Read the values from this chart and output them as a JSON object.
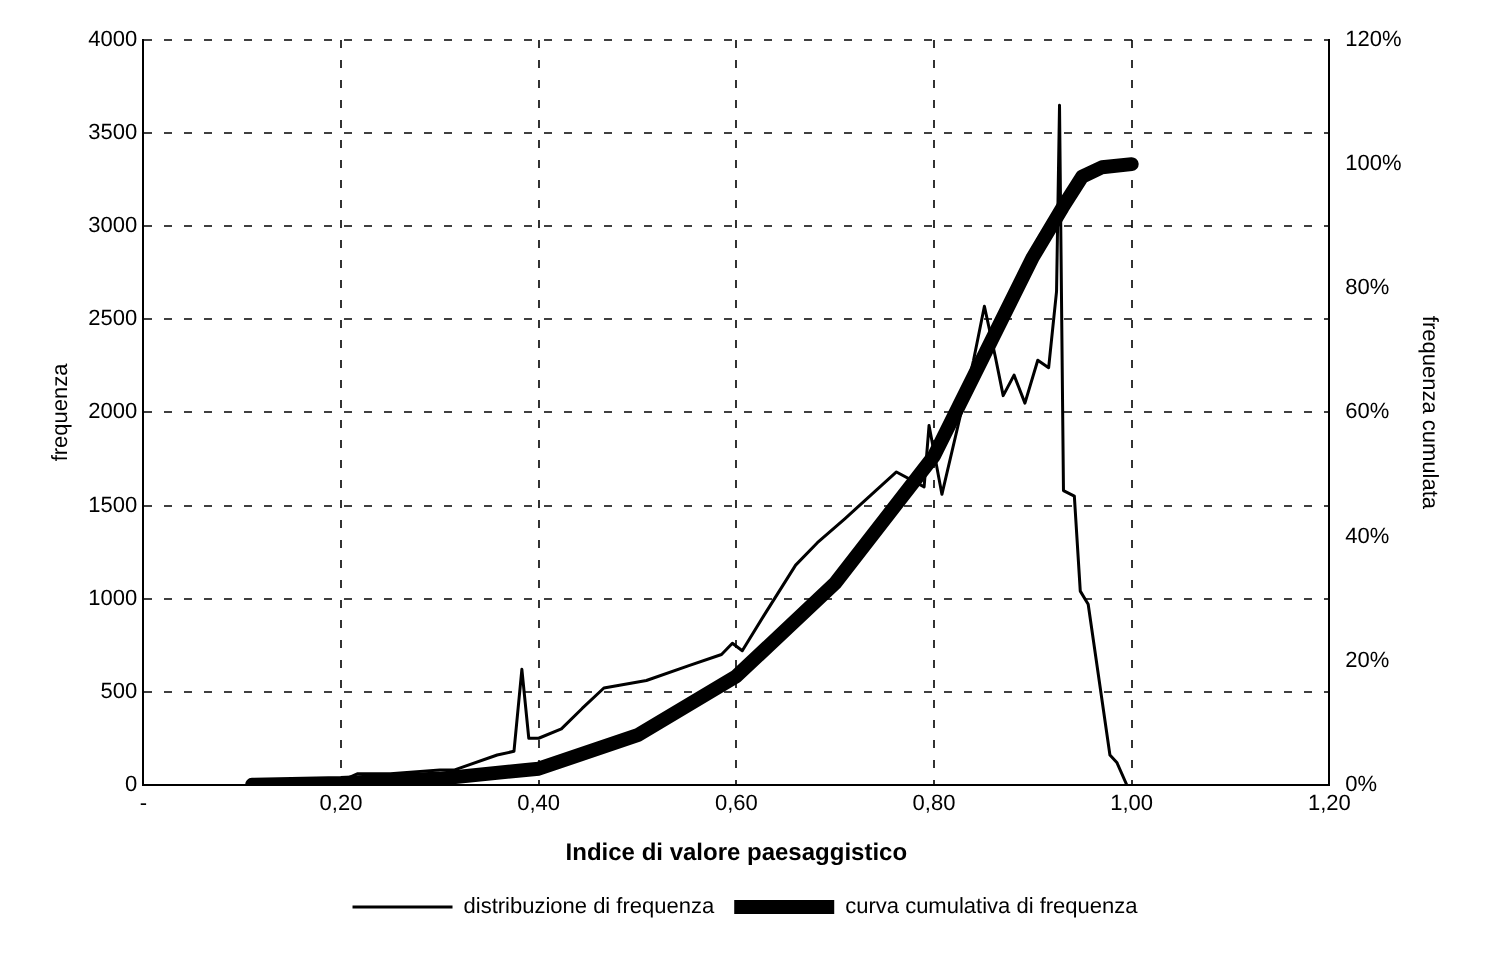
{
  "chart_data": {
    "type": "line",
    "xlabel": "Indice di valore paesaggistico",
    "ylabel": "frequenza",
    "y2label": "frequenza cumulata",
    "xlim": [
      0,
      1.2
    ],
    "xticks": [
      {
        "value": 0,
        "label": "-"
      },
      {
        "value": 0.2,
        "label": "0,20"
      },
      {
        "value": 0.4,
        "label": "0,40"
      },
      {
        "value": 0.6,
        "label": "0,60"
      },
      {
        "value": 0.8,
        "label": "0,80"
      },
      {
        "value": 1.0,
        "label": "1,00"
      },
      {
        "value": 1.2,
        "label": "1,20"
      }
    ],
    "ylim": [
      0,
      4000
    ],
    "yticks": [
      0,
      500,
      1000,
      1500,
      2000,
      2500,
      3000,
      3500,
      4000
    ],
    "y2lim": [
      0,
      1.2
    ],
    "y2ticks": [
      {
        "value": 0,
        "label": "0%"
      },
      {
        "value": 0.2,
        "label": "20%"
      },
      {
        "value": 0.4,
        "label": "40%"
      },
      {
        "value": 0.6,
        "label": "60%"
      },
      {
        "value": 0.8,
        "label": "80%"
      },
      {
        "value": 1.0,
        "label": "100%"
      },
      {
        "value": 1.2,
        "label": "120%"
      }
    ],
    "grid": true,
    "legend": "bottom",
    "marker": "none",
    "line_style": "solid",
    "series": [
      {
        "name": "distribuzione di frequenza",
        "color": "#000000",
        "x": [
          0.12,
          0.2,
          0.217,
          0.25,
          0.3,
          0.315,
          0.358,
          0.375,
          0.383,
          0.39,
          0.4,
          0.423,
          0.444,
          0.466,
          0.509,
          0.552,
          0.585,
          0.596,
          0.606,
          0.628,
          0.66,
          0.682,
          0.71,
          0.762,
          0.79,
          0.795,
          0.808,
          0.827,
          0.84,
          0.851,
          0.862,
          0.87,
          0.881,
          0.892,
          0.905,
          0.916,
          0.924,
          0.927,
          0.931,
          0.942,
          0.948,
          0.956,
          0.978,
          0.985,
          0.995
        ],
        "values": [
          0,
          20,
          60,
          60,
          80,
          80,
          160,
          180,
          620,
          250,
          250,
          300,
          410,
          520,
          560,
          640,
          700,
          760,
          720,
          910,
          1180,
          1300,
          1430,
          1680,
          1600,
          1930,
          1560,
          1990,
          2280,
          2570,
          2300,
          2090,
          2200,
          2050,
          2280,
          2240,
          2650,
          3650,
          1580,
          1550,
          1040,
          970,
          160,
          120,
          0
        ]
      },
      {
        "name": "curva cumulativa di frequenza",
        "axis": "y2",
        "color": "#000000",
        "x": [
          0.11,
          0.2,
          0.3,
          0.4,
          0.5,
          0.6,
          0.7,
          0.8,
          0.85,
          0.9,
          0.93,
          0.95,
          0.97,
          1.0
        ],
        "values": [
          0,
          0.003,
          0.01,
          0.026,
          0.08,
          0.175,
          0.325,
          0.53,
          0.69,
          0.85,
          0.93,
          0.98,
          0.995,
          1.0
        ]
      }
    ]
  }
}
